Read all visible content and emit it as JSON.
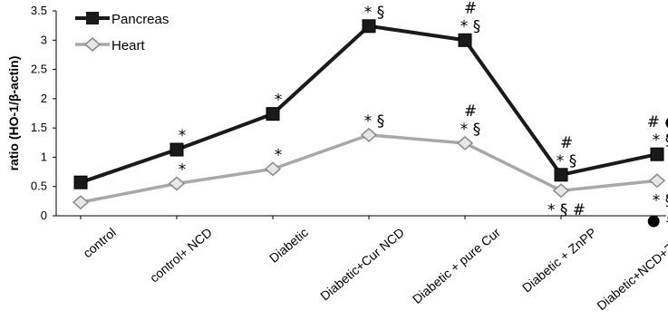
{
  "chart_data": {
    "type": "line",
    "title": "",
    "xlabel": "",
    "ylabel": "ratio (HO-1/β-actin)",
    "ylim": [
      0,
      3.5
    ],
    "yticks": [
      "0",
      "0.5",
      "1",
      "1.5",
      "2",
      "2.5",
      "3",
      "3.5"
    ],
    "ytick_values": [
      0,
      0.5,
      1,
      1.5,
      2,
      2.5,
      3,
      3.5
    ],
    "grid": false,
    "legend_position": "top-left",
    "categories": [
      "control",
      "control+ NCD",
      "Diabetic",
      "Diabetic+Cur NCD",
      "Diabetic + pure Cur",
      "Diabetic + ZnPP",
      "Diabetic+NCD+ZnPP"
    ],
    "series": [
      {
        "name": "Pancreas",
        "color": "#1a1a1a",
        "marker": "square",
        "values": [
          0.57,
          1.13,
          1.74,
          3.24,
          3.0,
          0.7,
          1.05
        ]
      },
      {
        "name": "Heart",
        "color": "#a8a8a8",
        "marker": "diamond",
        "values": [
          0.23,
          0.55,
          0.8,
          1.38,
          1.24,
          0.43,
          0.6
        ]
      }
    ],
    "annotations": [
      {
        "series": 0,
        "index": 1,
        "position": "above",
        "lines": [
          "*"
        ]
      },
      {
        "series": 0,
        "index": 2,
        "position": "above",
        "lines": [
          "*"
        ]
      },
      {
        "series": 0,
        "index": 3,
        "position": "above",
        "lines": [
          "* §"
        ]
      },
      {
        "series": 0,
        "index": 4,
        "position": "above",
        "lines": [
          "#",
          "* §"
        ]
      },
      {
        "series": 0,
        "index": 5,
        "position": "above",
        "lines": [
          "#",
          "* §"
        ]
      },
      {
        "series": 0,
        "index": 6,
        "position": "above",
        "lines": [
          "# ●",
          "* §"
        ]
      },
      {
        "series": 1,
        "index": 1,
        "position": "above",
        "lines": [
          "*"
        ]
      },
      {
        "series": 1,
        "index": 2,
        "position": "above",
        "lines": [
          "*"
        ]
      },
      {
        "series": 1,
        "index": 3,
        "position": "above",
        "lines": [
          "* §"
        ]
      },
      {
        "series": 1,
        "index": 4,
        "position": "above",
        "lines": [
          "#",
          "* §"
        ]
      },
      {
        "series": 1,
        "index": 5,
        "position": "below",
        "lines": [
          "* § #"
        ]
      },
      {
        "series": 1,
        "index": 6,
        "position": "below",
        "lines": [
          "* §",
          "● #"
        ]
      }
    ]
  }
}
